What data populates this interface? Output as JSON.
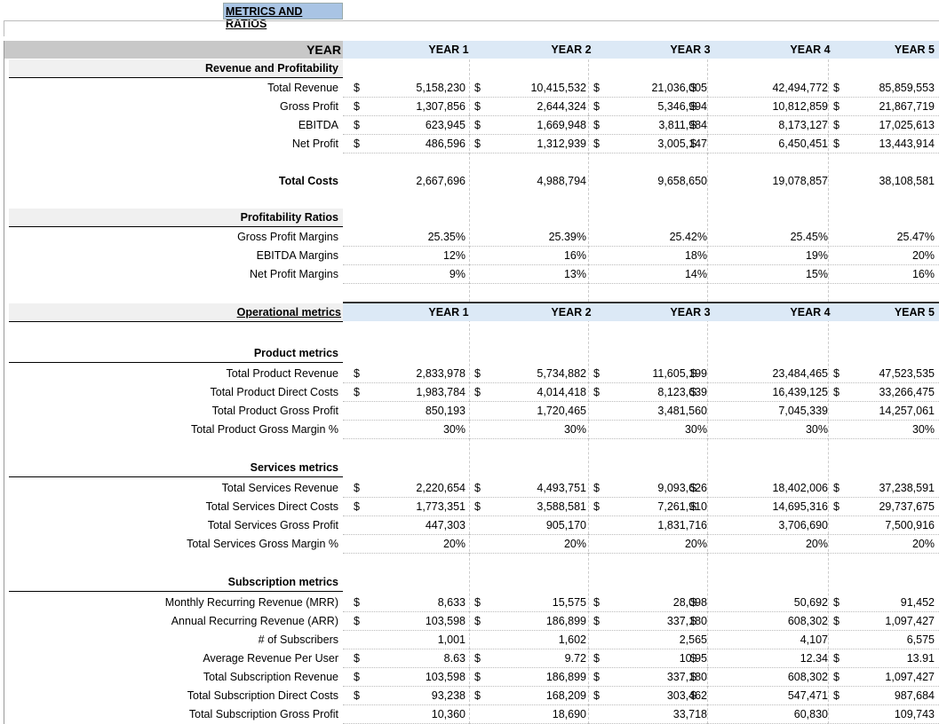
{
  "sheet_title": "METRICS AND RATIOS",
  "years": [
    "YEAR 1",
    "YEAR 2",
    "YEAR 3",
    "YEAR 4",
    "YEAR 5"
  ],
  "year_label": "YEAR",
  "currency": "$",
  "revenue": {
    "heading": "Revenue and Profitability",
    "rows": [
      {
        "label": "Total Revenue",
        "cur": true,
        "values": [
          "5,158,230",
          "10,415,532",
          "21,036,005",
          "42,494,772",
          "85,859,553"
        ]
      },
      {
        "label": "Gross Profit",
        "cur": true,
        "values": [
          "1,307,856",
          "2,644,324",
          "5,346,994",
          "10,812,859",
          "21,867,719"
        ]
      },
      {
        "label": "EBITDA",
        "cur": true,
        "values": [
          "623,945",
          "1,669,948",
          "3,811,984",
          "8,173,127",
          "17,025,613"
        ]
      },
      {
        "label": "Net Profit",
        "cur": true,
        "values": [
          "486,596",
          "1,312,939",
          "3,005,147",
          "6,450,451",
          "13,443,914"
        ]
      }
    ]
  },
  "total_costs": {
    "label": "Total Costs",
    "values": [
      "2,667,696",
      "4,988,794",
      "9,658,650",
      "19,078,857",
      "38,108,581"
    ]
  },
  "ratios": {
    "heading": "Profitability Ratios",
    "rows": [
      {
        "label": "Gross Profit Margins",
        "values": [
          "25.35%",
          "25.39%",
          "25.42%",
          "25.45%",
          "25.47%"
        ]
      },
      {
        "label": "EBITDA Margins",
        "values": [
          "12%",
          "16%",
          "18%",
          "19%",
          "20%"
        ]
      },
      {
        "label": "Net Profit Margins",
        "values": [
          "9%",
          "13%",
          "14%",
          "15%",
          "16%"
        ]
      }
    ]
  },
  "operational_label": "Operational metrics",
  "product": {
    "heading": "Product metrics",
    "rows": [
      {
        "label": "Total Product Revenue",
        "cur": true,
        "values": [
          "2,833,978",
          "5,734,882",
          "11,605,199",
          "23,484,465",
          "47,523,535"
        ]
      },
      {
        "label": "Total Product Direct Costs",
        "cur": true,
        "values": [
          "1,983,784",
          "4,014,418",
          "8,123,639",
          "16,439,125",
          "33,266,475"
        ]
      },
      {
        "label": "Total Product Gross Profit",
        "cur": false,
        "values": [
          "850,193",
          "1,720,465",
          "3,481,560",
          "7,045,339",
          "14,257,061"
        ]
      },
      {
        "label": "Total Product Gross Margin %",
        "cur": false,
        "values": [
          "30%",
          "30%",
          "30%",
          "30%",
          "30%"
        ]
      }
    ]
  },
  "services": {
    "heading": "Services metrics",
    "rows": [
      {
        "label": "Total Services Revenue",
        "cur": true,
        "values": [
          "2,220,654",
          "4,493,751",
          "9,093,626",
          "18,402,006",
          "37,238,591"
        ]
      },
      {
        "label": "Total Services Direct Costs",
        "cur": true,
        "values": [
          "1,773,351",
          "3,588,581",
          "7,261,910",
          "14,695,316",
          "29,737,675"
        ]
      },
      {
        "label": "Total Services Gross Profit",
        "cur": false,
        "values": [
          "447,303",
          "905,170",
          "1,831,716",
          "3,706,690",
          "7,500,916"
        ]
      },
      {
        "label": "Total Services Gross Margin %",
        "cur": false,
        "values": [
          "20%",
          "20%",
          "20%",
          "20%",
          "20%"
        ]
      }
    ]
  },
  "subscription": {
    "heading": "Subscription metrics",
    "rows": [
      {
        "label": "Monthly Recurring Revenue (MRR)",
        "cur": true,
        "values": [
          "8,633",
          "15,575",
          "28,098",
          "50,692",
          "91,452"
        ]
      },
      {
        "label": "Annual Recurring Revenue (ARR)",
        "cur": true,
        "values": [
          "103,598",
          "186,899",
          "337,180",
          "608,302",
          "1,097,427"
        ]
      },
      {
        "label": "# of Subscribers",
        "cur": false,
        "values": [
          "1,001",
          "1,602",
          "2,565",
          "4,107",
          "6,575"
        ]
      },
      {
        "label": "Average Revenue Per User",
        "cur": true,
        "values": [
          "8.63",
          "9.72",
          "10.95",
          "12.34",
          "13.91"
        ]
      },
      {
        "label": "Total Subscription Revenue",
        "cur": true,
        "values": [
          "103,598",
          "186,899",
          "337,180",
          "608,302",
          "1,097,427"
        ]
      },
      {
        "label": "Total Subscription Direct Costs",
        "cur": true,
        "values": [
          "93,238",
          "168,209",
          "303,462",
          "547,471",
          "987,684"
        ]
      },
      {
        "label": "Total Subscription Gross Profit",
        "cur": false,
        "values": [
          "10,360",
          "18,690",
          "33,718",
          "60,830",
          "109,743"
        ]
      }
    ]
  }
}
